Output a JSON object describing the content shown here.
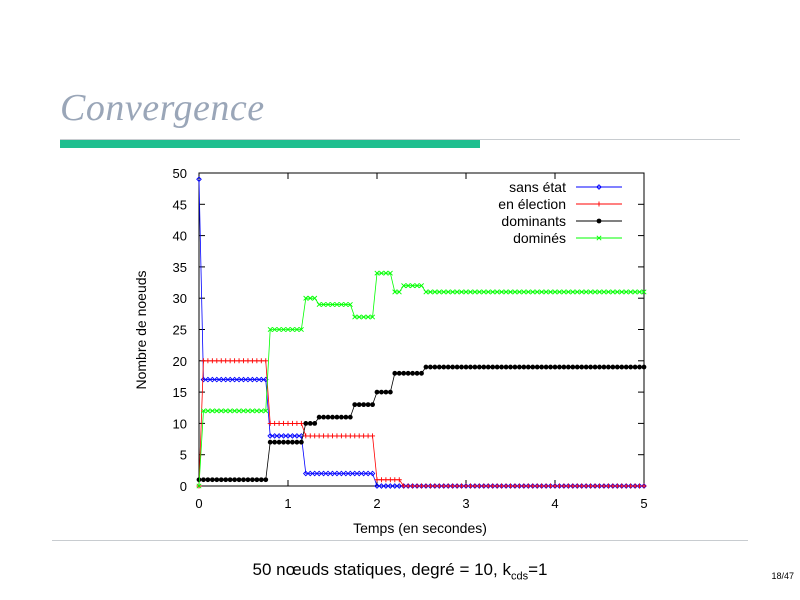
{
  "slide": {
    "title": "Convergence",
    "caption_main": "50 nœuds statiques, degré = 10, k",
    "caption_sub": "cds",
    "caption_tail": "=1",
    "page": "18/47",
    "title_color": "#9aa6b8",
    "accent_color": "#1fbf8f"
  },
  "chart_data": {
    "type": "line",
    "xlabel": "Temps (en secondes)",
    "ylabel": "Nombre de noeuds",
    "xlim": [
      0,
      5
    ],
    "ylim": [
      0,
      50
    ],
    "xticks": [
      0,
      1,
      2,
      3,
      4,
      5
    ],
    "yticks": [
      0,
      5,
      10,
      15,
      20,
      25,
      30,
      35,
      40,
      45,
      50
    ],
    "grid": false,
    "legend_position": "top-right",
    "x_step": 0.05,
    "series": [
      {
        "name": "sans état",
        "color": "#0000ff",
        "marker": "diamond",
        "segments": [
          [
            0,
            49
          ],
          [
            0.05,
            17
          ],
          [
            0.8,
            8
          ],
          [
            1.2,
            2
          ],
          [
            2.0,
            0
          ],
          [
            5.0,
            0
          ]
        ]
      },
      {
        "name": "en élection",
        "color": "#ff0000",
        "marker": "plus",
        "segments": [
          [
            0,
            0
          ],
          [
            0.05,
            20
          ],
          [
            0.8,
            10
          ],
          [
            1.2,
            8
          ],
          [
            2.0,
            1
          ],
          [
            2.3,
            0
          ],
          [
            5.0,
            0
          ]
        ]
      },
      {
        "name": "dominants",
        "color": "#000000",
        "marker": "dot",
        "segments": [
          [
            0,
            1
          ],
          [
            0.8,
            7
          ],
          [
            1.2,
            10
          ],
          [
            1.35,
            11
          ],
          [
            1.75,
            13
          ],
          [
            2.0,
            15
          ],
          [
            2.2,
            18
          ],
          [
            2.55,
            19
          ],
          [
            5.0,
            19
          ]
        ]
      },
      {
        "name": "dominés",
        "color": "#00ff00",
        "marker": "cross",
        "segments": [
          [
            0,
            0
          ],
          [
            0.05,
            12
          ],
          [
            0.8,
            25
          ],
          [
            1.2,
            30
          ],
          [
            1.35,
            29
          ],
          [
            1.75,
            27
          ],
          [
            2.0,
            34
          ],
          [
            2.2,
            31
          ],
          [
            2.3,
            32
          ],
          [
            2.55,
            31
          ],
          [
            5.0,
            31
          ]
        ]
      }
    ]
  }
}
